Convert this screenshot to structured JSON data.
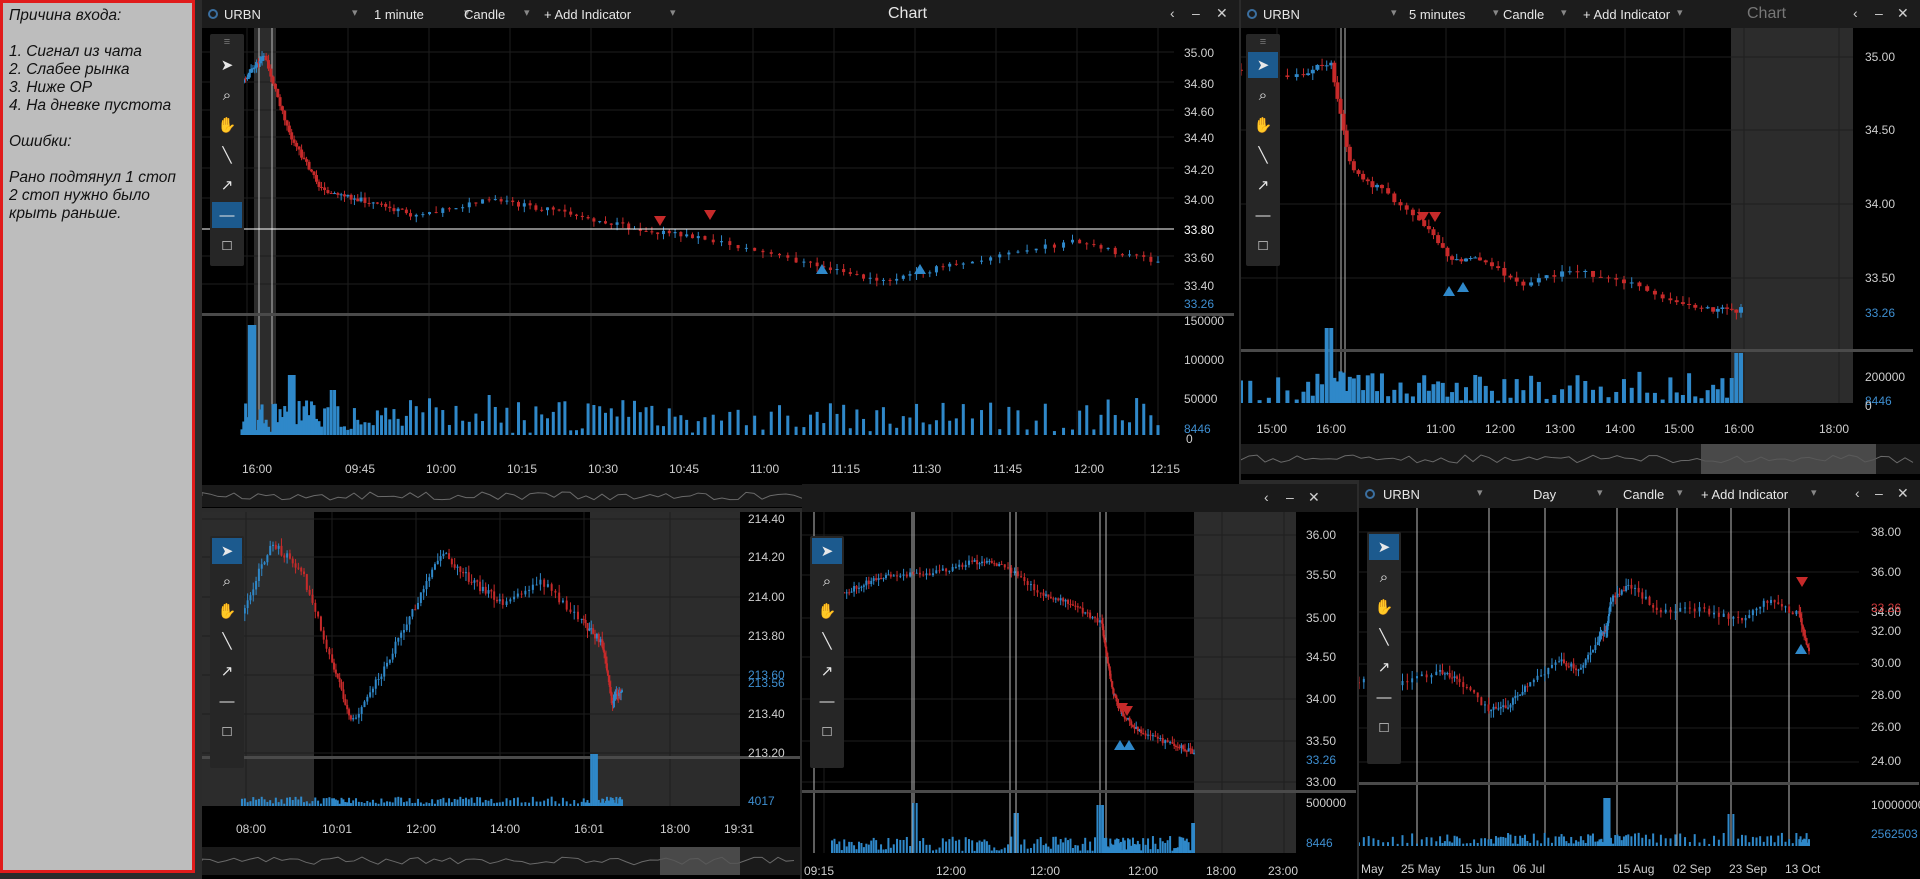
{
  "notes": {
    "title": "Причина входа:",
    "reasons": [
      "1. Сигнал из чата",
      "2. Слабее рынка",
      "3. Ниже OP",
      "4. На дневке пустота"
    ],
    "errors_title": "Ошибки:",
    "errors": [
      "Рано подтянул 1 стоп",
      "2 стоп нужно было",
      "крыть раньше."
    ]
  },
  "colors": {
    "up": "#2f88c9",
    "down": "#c62a2a",
    "background": "#000000",
    "toolbar_selected": "#1c5a8e"
  },
  "icons": [
    "pointer-icon",
    "zoom-icon",
    "hand-icon",
    "line-icon",
    "arrow-icon",
    "hline-icon",
    "rect-icon",
    "menu-icon"
  ],
  "panels": {
    "p1": {
      "symbol": "URBN",
      "timeframe": "1 minute",
      "chart_type": "Candle",
      "add_indicator": "+ Add Indicator",
      "title": "Chart",
      "price_ticks": [
        "35.00",
        "34.80",
        "34.60",
        "34.40",
        "34.20",
        "34.00",
        "33.80",
        "33.60",
        "33.40"
      ],
      "last_price": "33.26",
      "line_price": "33.80",
      "vol_ticks": [
        "150000",
        "100000",
        "50000",
        "0"
      ],
      "last_vol": "8446",
      "time_ticks": [
        "16:00",
        "09:45",
        "10:00",
        "10:15",
        "10:30",
        "10:45",
        "11:00",
        "11:15",
        "11:30",
        "11:45",
        "12:00",
        "12:15"
      ]
    },
    "p2": {
      "symbol": "URBN",
      "timeframe": "5 minutes",
      "chart_type": "Candle",
      "add_indicator": "+ Add Indicator",
      "title": "Chart",
      "price_ticks": [
        "35.00",
        "34.50",
        "34.00",
        "33.50"
      ],
      "last_price": "33.26",
      "vol_ticks": [
        "200000",
        "0"
      ],
      "last_vol": "8446",
      "time_ticks": [
        "15:00",
        "16:00",
        "11:00",
        "12:00",
        "13:00",
        "14:00",
        "15:00",
        "16:00",
        "18:00"
      ]
    },
    "p3": {
      "price_ticks": [
        "214.40",
        "214.20",
        "214.00",
        "213.80",
        "213.60",
        "213.40",
        "213.20"
      ],
      "last_price": "213.56",
      "last_vol": "4017",
      "time_ticks": [
        "08:00",
        "10:01",
        "12:00",
        "14:00",
        "16:01",
        "18:00",
        "19:31"
      ]
    },
    "p4": {
      "price_ticks": [
        "36.00",
        "35.50",
        "35.00",
        "34.50",
        "34.00",
        "33.50",
        "33.00"
      ],
      "last_price": "33.26",
      "vol_ticks": [
        "500000"
      ],
      "last_vol": "8446",
      "time_ticks": [
        "09:15",
        "12:00",
        "12:00",
        "12:00",
        "18:00",
        "23:00"
      ]
    },
    "p5": {
      "symbol": "URBN",
      "timeframe": "Day",
      "chart_type": "Candle",
      "add_indicator": "+ Add Indicator",
      "price_ticks": [
        "38.00",
        "36.00",
        "34.00",
        "32.00",
        "30.00",
        "28.00",
        "26.00",
        "24.00"
      ],
      "last_price": "33.26",
      "vol_ticks": [
        "10000000"
      ],
      "last_vol": "2562503",
      "time_ticks": [
        "May",
        "25 May",
        "15 Jun",
        "06 Jul",
        "15 Aug",
        "02 Sep",
        "23 Sep",
        "13 Oct"
      ]
    }
  }
}
